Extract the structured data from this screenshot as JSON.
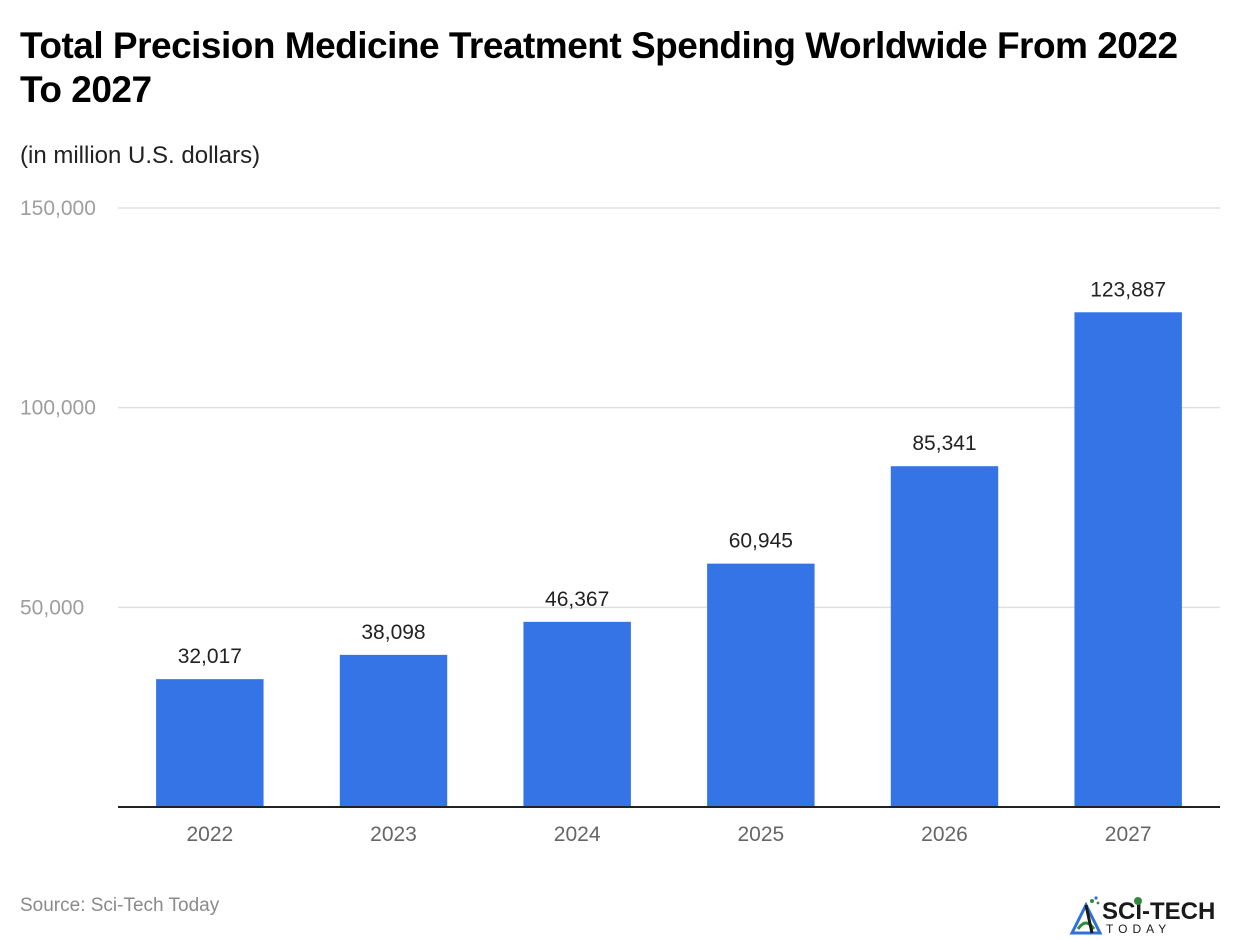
{
  "header": {
    "title": "Total Precision Medicine Treatment Spending Worldwide From 2022 To 2027",
    "subtitle": "(in million U.S. dollars)"
  },
  "footer": {
    "source": "Source: Sci-Tech Today",
    "logo": {
      "main_text": "SCI-TECH",
      "sub_text": "TODAY",
      "icon": "sci-tech-logo-icon"
    }
  },
  "colors": {
    "bar": "#3474e6",
    "gridline": "#e0e0e0",
    "axis": "#222222",
    "logo_dark": "#1a1a1a",
    "logo_green": "#2e8b3a",
    "logo_blue": "#2f6fd6"
  },
  "chart_data": {
    "type": "bar",
    "title": "Total Precision Medicine Treatment Spending Worldwide From 2022 To 2027",
    "subtitle": "(in million U.S. dollars)",
    "xlabel": "",
    "ylabel": "",
    "categories": [
      "2022",
      "2023",
      "2024",
      "2025",
      "2026",
      "2027"
    ],
    "values": [
      32017,
      38098,
      46367,
      60945,
      85341,
      123887
    ],
    "value_labels": [
      "32,017",
      "38,098",
      "46,367",
      "60,945",
      "85,341",
      "123,887"
    ],
    "ylim": [
      0,
      150000
    ],
    "yticks": [
      50000,
      100000,
      150000
    ],
    "ytick_labels": [
      "50,000",
      "100,000",
      "150,000"
    ],
    "grid": true,
    "legend": "none"
  }
}
